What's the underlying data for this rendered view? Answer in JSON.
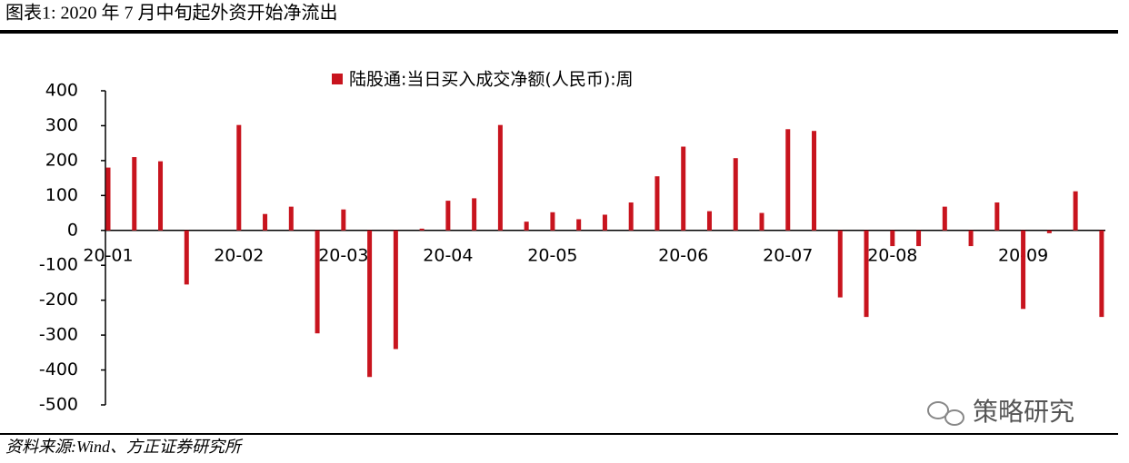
{
  "header": {
    "title": "图表1:   2020 年 7 月中旬起外资开始净流出"
  },
  "chart_data": {
    "type": "bar",
    "series": [
      {
        "name": "陆股通:当日买入成交净额(人民币):周",
        "color": "#c8141e",
        "values": [
          180,
          210,
          198,
          -155,
          null,
          302,
          47,
          68,
          -295,
          60,
          -420,
          -340,
          5,
          85,
          92,
          302,
          25,
          52,
          32,
          45,
          80,
          155,
          240,
          55,
          207,
          50,
          290,
          285,
          -192,
          -248,
          -45,
          -45,
          68,
          -45,
          80,
          -225,
          -8,
          112,
          -248
        ]
      }
    ],
    "categories": [
      "20-01",
      null,
      null,
      null,
      null,
      "20-02",
      null,
      null,
      null,
      "20-03",
      null,
      null,
      null,
      "20-04",
      null,
      null,
      null,
      "20-05",
      null,
      null,
      null,
      null,
      "20-06",
      null,
      null,
      null,
      "20-07",
      null,
      null,
      null,
      "20-08",
      null,
      null,
      null,
      null,
      "20-09",
      null,
      null,
      null
    ],
    "ylim": [
      -500,
      400
    ],
    "yticks": [
      400,
      300,
      200,
      100,
      0,
      -100,
      -200,
      -300,
      -400,
      -500
    ]
  },
  "watermark": "策略研究",
  "footer": {
    "source": "资料来源:Wind、方正证券研究所"
  }
}
